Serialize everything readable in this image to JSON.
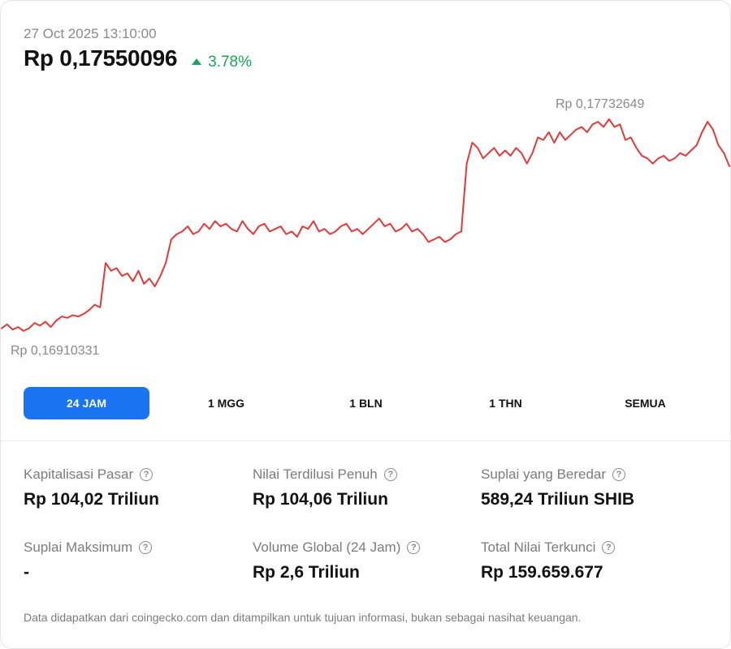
{
  "header": {
    "timestamp": "27 Oct 2025 13:10:00",
    "price": "Rp 0,17550096",
    "change": "3.78%",
    "change_color": "#1fa25a"
  },
  "chart_data": {
    "type": "line",
    "high_label": "Rp 0,17732649",
    "low_label": "Rp 0,16910331",
    "line_color": "#e03b3b",
    "ylim": [
      0.16910331,
      0.17732649
    ],
    "series": [
      {
        "values": [
          0.1693,
          0.16945,
          0.16925,
          0.16935,
          0.1692,
          0.1693,
          0.1695,
          0.1694,
          0.16955,
          0.16935,
          0.1696,
          0.16975,
          0.1697,
          0.1698,
          0.16975,
          0.16985,
          0.17,
          0.1702,
          0.1701,
          0.1718,
          0.1715,
          0.1716,
          0.1713,
          0.1714,
          0.1711,
          0.1715,
          0.171,
          0.1712,
          0.1709,
          0.1713,
          0.1718,
          0.1727,
          0.1729,
          0.173,
          0.1732,
          0.1729,
          0.173,
          0.1733,
          0.1731,
          0.1734,
          0.1732,
          0.1733,
          0.1731,
          0.173,
          0.1734,
          0.1731,
          0.1729,
          0.1732,
          0.1733,
          0.173,
          0.1731,
          0.1732,
          0.1729,
          0.173,
          0.1728,
          0.1732,
          0.1731,
          0.1734,
          0.173,
          0.1731,
          0.1729,
          0.173,
          0.1732,
          0.1733,
          0.173,
          0.1731,
          0.1729,
          0.1731,
          0.1733,
          0.1735,
          0.1732,
          0.1733,
          0.173,
          0.1731,
          0.1733,
          0.173,
          0.1731,
          0.1729,
          0.1726,
          0.1727,
          0.1728,
          0.1726,
          0.1727,
          0.1729,
          0.173,
          0.1756,
          0.1764,
          0.1762,
          0.1758,
          0.176,
          0.1762,
          0.1759,
          0.1761,
          0.1759,
          0.1762,
          0.176,
          0.1756,
          0.176,
          0.1766,
          0.1765,
          0.1768,
          0.1764,
          0.1768,
          0.1765,
          0.1767,
          0.1769,
          0.177,
          0.1768,
          0.1771,
          0.1772,
          0.177,
          0.1773,
          0.177,
          0.1771,
          0.1765,
          0.1766,
          0.1762,
          0.1759,
          0.1758,
          0.1756,
          0.1758,
          0.1759,
          0.1757,
          0.1758,
          0.176,
          0.1759,
          0.1761,
          0.1763,
          0.1768,
          0.1772,
          0.1769,
          0.1763,
          0.176,
          0.1755
        ]
      }
    ]
  },
  "tabs": [
    {
      "label": "24 JAM",
      "active": true
    },
    {
      "label": "1 MGG",
      "active": false
    },
    {
      "label": "1 BLN",
      "active": false
    },
    {
      "label": "1 THN",
      "active": false
    },
    {
      "label": "SEMUA",
      "active": false
    }
  ],
  "stats": {
    "market_cap": {
      "label": "Kapitalisasi Pasar",
      "value": "Rp 104,02 Triliun"
    },
    "fdv": {
      "label": "Nilai Terdilusi Penuh",
      "value": "Rp 104,06 Triliun"
    },
    "circulating": {
      "label": "Suplai yang Beredar",
      "value": "589,24 Triliun SHIB"
    },
    "max_supply": {
      "label": "Suplai Maksimum",
      "value": "-"
    },
    "volume": {
      "label": "Volume Global (24 Jam)",
      "value": "Rp 2,6 Triliun"
    },
    "tvl": {
      "label": "Total Nilai Terkunci",
      "value": "Rp 159.659.677"
    }
  },
  "help_icon": {
    "icon": "question-circle-icon",
    "glyph": "?"
  },
  "footer": "Data didapatkan dari coingecko.com dan ditampilkan untuk tujuan informasi, bukan sebagai nasihat keuangan."
}
